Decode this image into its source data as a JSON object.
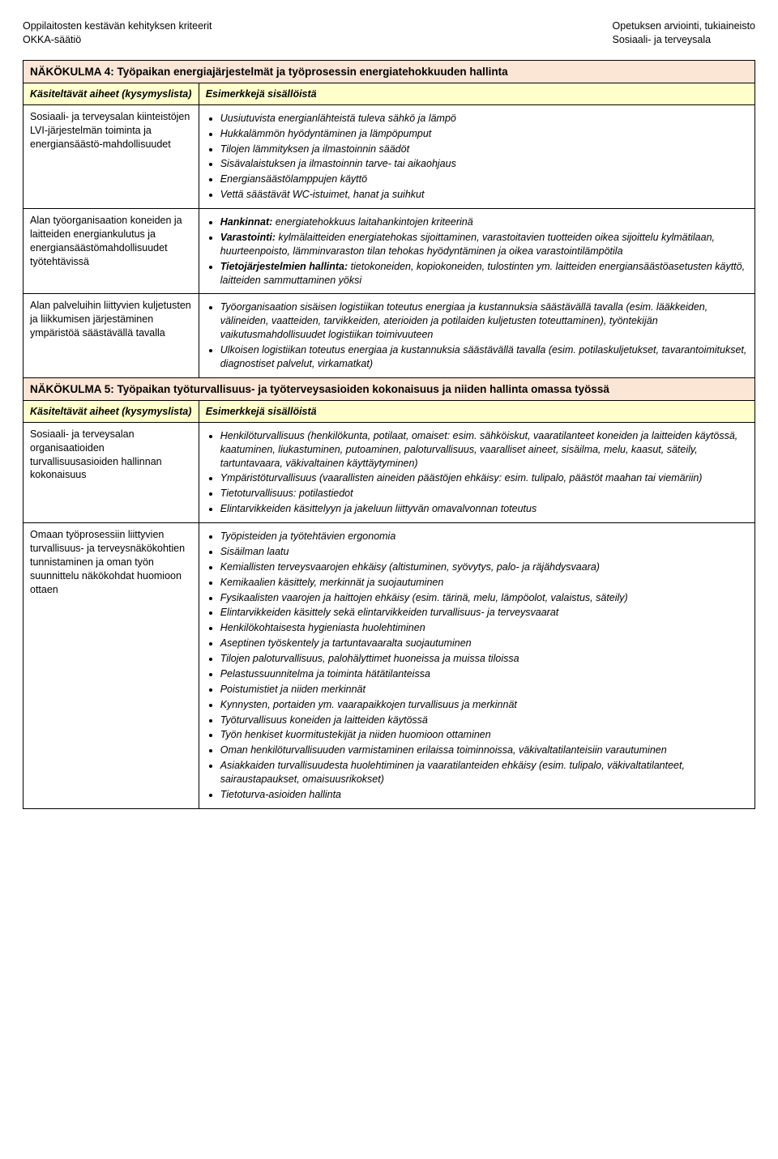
{
  "header": {
    "left_line1": "Oppilaitosten kestävän kehityksen kriteerit",
    "left_line2": "OKKA-säätiö",
    "right_line1": "Opetuksen arviointi, tukiaineisto",
    "right_line2": "Sosiaali- ja terveysala"
  },
  "labels": {
    "topics_heading": "Käsiteltävät aiheet (kysymyslista)",
    "examples_heading": "Esimerkkejä sisällöistä"
  },
  "section4": {
    "title": "NÄKÖKULMA 4: Työpaikan energiajärjestelmät ja työprosessin energiatehokkuuden hallinta",
    "rows": [
      {
        "topic": "Sosiaali- ja terveysalan kiinteistöjen LVI-järjestelmän toiminta ja energiansäästö-mahdollisuudet",
        "items": [
          {
            "text": "Uusiutuvista energianlähteistä tuleva sähkö ja lämpö"
          },
          {
            "text": "Hukkalämmön hyödyntäminen ja lämpöpumput"
          },
          {
            "text": "Tilojen lämmityksen ja ilmastoinnin säädöt"
          },
          {
            "text": "Sisävalaistuksen ja ilmastoinnin tarve- tai aikaohjaus"
          },
          {
            "text": "Energiansäästölamppujen käyttö"
          },
          {
            "text": "Vettä säästävät WC-istuimet, hanat ja suihkut"
          }
        ]
      },
      {
        "topic": "Alan työorganisaation koneiden ja laitteiden energiankulutus ja energiansäästömahdollisuudet työtehtävissä",
        "items": [
          {
            "lead": "Hankinnat:",
            "text": " energiatehokkuus laitahankintojen kriteerinä"
          },
          {
            "lead": "Varastointi:",
            "text": " kylmälaitteiden energiatehokas sijoittaminen, varastoitavien tuotteiden oikea sijoittelu kylmätilaan, huurteenpoisto, lämminvaraston tilan tehokas hyödyntäminen ja oikea varastointilämpötila"
          },
          {
            "lead": "Tietojärjestelmien hallinta:",
            "text": " tietokoneiden, kopiokoneiden, tulostinten ym. laitteiden energiansäästöasetusten käyttö, laitteiden sammuttaminen yöksi"
          }
        ]
      },
      {
        "topic": "Alan palveluihin liittyvien kuljetusten ja liikkumisen järjestäminen ympäristöä säästävällä tavalla",
        "items": [
          {
            "text": "Työorganisaation sisäisen logistiikan toteutus energiaa ja kustannuksia säästävällä tavalla (esim. lääkkeiden, välineiden, vaatteiden, tarvikkeiden, aterioiden ja potilaiden kuljetusten toteuttaminen), työntekijän vaikutusmahdollisuudet logistiikan toimivuuteen"
          },
          {
            "text": "Ulkoisen logistiikan toteutus energiaa ja kustannuksia säästävällä tavalla (esim. potilaskuljetukset, tavarantoimitukset, diagnostiset palvelut, virkamatkat)"
          }
        ]
      }
    ]
  },
  "section5": {
    "title": "NÄKÖKULMA 5: Työpaikan työturvallisuus- ja työterveysasioiden kokonaisuus ja niiden hallinta omassa työssä",
    "rows": [
      {
        "topic": "Sosiaali- ja terveysalan organisaatioiden turvallisuusasioiden hallinnan kokonaisuus",
        "items": [
          {
            "text": "Henkilöturvallisuus (henkilökunta, potilaat, omaiset: esim. sähköiskut, vaaratilanteet koneiden ja laitteiden käytössä, kaatuminen, liukastuminen, putoaminen, paloturvallisuus, vaaralliset aineet, sisäilma, melu, kaasut, säteily, tartuntavaara, väkivaltainen käyttäytyminen)"
          },
          {
            "text": "Ympäristöturvallisuus (vaarallisten aineiden päästöjen ehkäisy: esim. tulipalo, päästöt maahan tai viemäriin)"
          },
          {
            "text": "Tietoturvallisuus: potilastiedot"
          },
          {
            "text": "Elintarvikkeiden käsittelyyn ja jakeluun liittyvän omavalvonnan toteutus"
          }
        ]
      },
      {
        "topic": "Omaan työprosessiin liittyvien turvallisuus- ja terveysnäkökohtien tunnistaminen ja oman työn suunnittelu näkökohdat huomioon ottaen",
        "items": [
          {
            "text": "Työpisteiden ja työtehtävien ergonomia"
          },
          {
            "text": "Sisäilman laatu"
          },
          {
            "text": "Kemiallisten terveysvaarojen ehkäisy (altistuminen, syövytys, palo- ja räjähdysvaara)"
          },
          {
            "text": "Kemikaalien käsittely, merkinnät ja suojautuminen"
          },
          {
            "text": "Fysikaalisten vaarojen ja haittojen ehkäisy (esim. tärinä, melu, lämpöolot, valaistus, säteily)"
          },
          {
            "text": "Elintarvikkeiden käsittely sekä elintarvikkeiden turvallisuus- ja terveysvaarat"
          },
          {
            "text": "Henkilökohtaisesta hygieniasta huolehtiminen"
          },
          {
            "text": "Aseptinen työskentely ja tartuntavaaralta suojautuminen"
          },
          {
            "text": "Tilojen paloturvallisuus, palohälyttimet huoneissa ja muissa tiloissa"
          },
          {
            "text": "Pelastussuunnitelma ja toiminta hätätilanteissa"
          },
          {
            "text": "Poistumistiet ja niiden merkinnät"
          },
          {
            "text": "Kynnysten, portaiden ym. vaarapaikkojen turvallisuus ja merkinnät"
          },
          {
            "text": "Työturvallisuus koneiden ja laitteiden käytössä"
          },
          {
            "text": "Työn henkiset kuormitustekijät ja niiden huomioon ottaminen"
          },
          {
            "text": "Oman henkilöturvallisuuden varmistaminen erilaissa toiminnoissa, väkivaltatilanteisiin varautuminen"
          },
          {
            "text": "Asiakkaiden turvallisuudesta huolehtiminen ja vaaratilanteiden ehkäisy (esim. tulipalo, väkivaltatilanteet, sairaustapaukset, omaisuusrikokset)"
          },
          {
            "text": "Tietoturva-asioiden hallinta"
          }
        ]
      }
    ]
  }
}
